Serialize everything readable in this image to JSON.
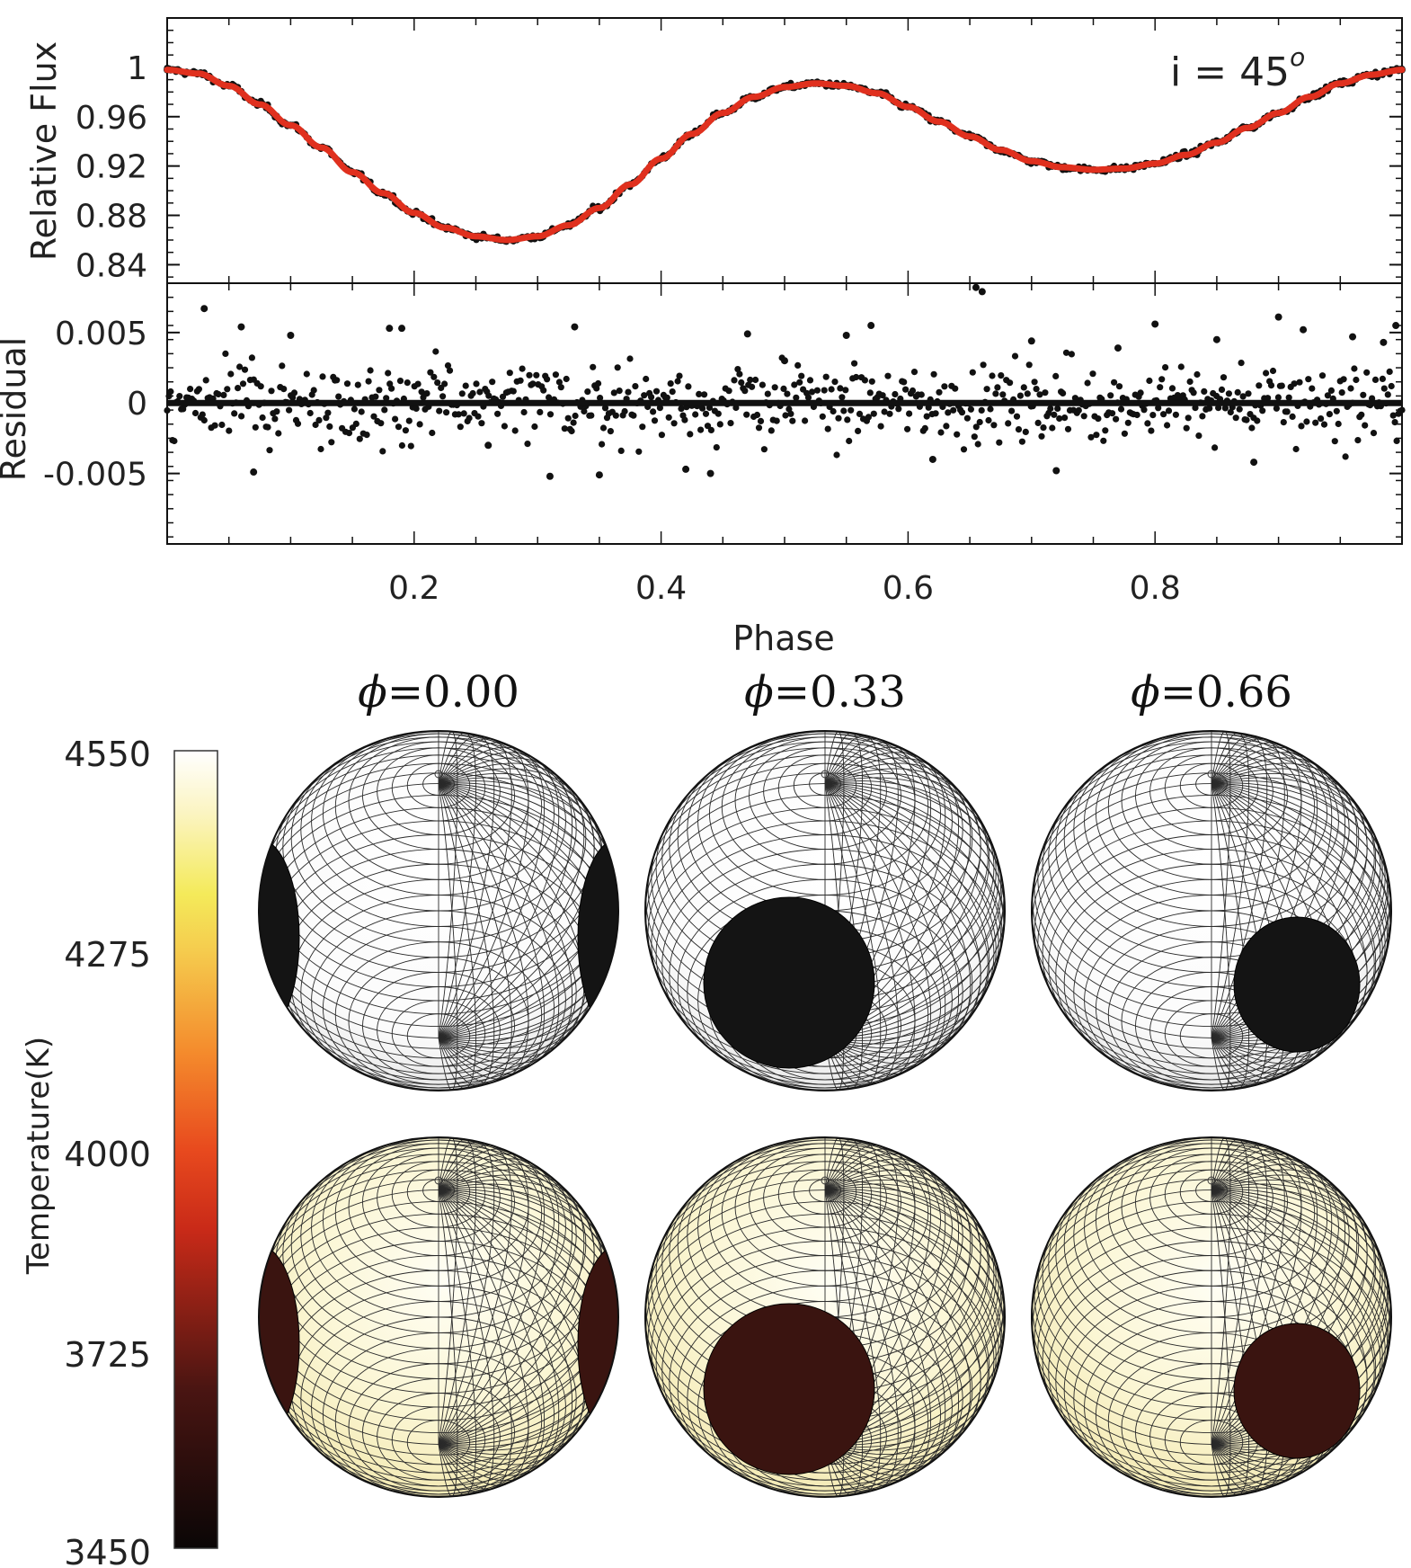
{
  "chart_data": [
    {
      "type": "scatter",
      "panel": "light-curve",
      "ylabel": "Relative Flux",
      "annotation": {
        "text": "i = 45",
        "superscript": "o"
      },
      "ylim": [
        0.825,
        1.04
      ],
      "xlim": [
        0.0,
        1.0
      ],
      "yticks": [
        0.84,
        0.88,
        0.92,
        0.96,
        1.0
      ],
      "ytick_labels": [
        "0.84",
        "0.88",
        "0.92",
        "0.96",
        "1"
      ],
      "grid": false,
      "series": [
        {
          "kind": "points",
          "color": "#111111",
          "x": [
            0.0,
            0.025,
            0.05,
            0.075,
            0.1,
            0.125,
            0.15,
            0.175,
            0.2,
            0.225,
            0.25,
            0.275,
            0.3,
            0.325,
            0.35,
            0.375,
            0.4,
            0.425,
            0.45,
            0.475,
            0.5,
            0.525,
            0.55,
            0.575,
            0.6,
            0.625,
            0.65,
            0.675,
            0.7,
            0.725,
            0.75,
            0.775,
            0.8,
            0.825,
            0.85,
            0.875,
            0.9,
            0.925,
            0.95,
            0.975,
            1.0
          ],
          "y": [
            0.998,
            0.995,
            0.985,
            0.97,
            0.953,
            0.935,
            0.915,
            0.898,
            0.882,
            0.87,
            0.863,
            0.86,
            0.863,
            0.872,
            0.886,
            0.905,
            0.926,
            0.946,
            0.963,
            0.976,
            0.984,
            0.987,
            0.985,
            0.979,
            0.968,
            0.956,
            0.944,
            0.933,
            0.924,
            0.919,
            0.917,
            0.918,
            0.922,
            0.929,
            0.939,
            0.951,
            0.963,
            0.976,
            0.987,
            0.994,
            0.998
          ]
        },
        {
          "kind": "line",
          "color": "#e0301e",
          "x": [
            0.0,
            0.025,
            0.05,
            0.075,
            0.1,
            0.125,
            0.15,
            0.175,
            0.2,
            0.225,
            0.25,
            0.275,
            0.3,
            0.325,
            0.35,
            0.375,
            0.4,
            0.425,
            0.45,
            0.475,
            0.5,
            0.525,
            0.55,
            0.575,
            0.6,
            0.625,
            0.65,
            0.675,
            0.7,
            0.725,
            0.75,
            0.775,
            0.8,
            0.825,
            0.85,
            0.875,
            0.9,
            0.925,
            0.95,
            0.975,
            1.0
          ],
          "y": [
            0.998,
            0.995,
            0.985,
            0.97,
            0.953,
            0.935,
            0.915,
            0.898,
            0.882,
            0.87,
            0.863,
            0.86,
            0.863,
            0.872,
            0.886,
            0.905,
            0.926,
            0.946,
            0.963,
            0.976,
            0.984,
            0.987,
            0.985,
            0.979,
            0.968,
            0.956,
            0.944,
            0.933,
            0.924,
            0.919,
            0.917,
            0.918,
            0.922,
            0.929,
            0.939,
            0.951,
            0.963,
            0.976,
            0.987,
            0.994,
            0.998
          ]
        }
      ]
    },
    {
      "type": "scatter",
      "panel": "residual",
      "ylabel": "Residual",
      "xlabel": "Phase",
      "xlim": [
        0.0,
        1.0
      ],
      "ylim": [
        -0.01,
        0.0085
      ],
      "xticks": [
        0.2,
        0.4,
        0.6,
        0.8
      ],
      "xtick_labels": [
        "0.2",
        "0.4",
        "0.6",
        "0.8"
      ],
      "yticks": [
        -0.005,
        0.0,
        0.005
      ],
      "ytick_labels": [
        "-0.005",
        "0",
        "0.005"
      ],
      "zero_line": 0,
      "grid": false,
      "x": [
        0.03,
        0.06,
        0.1,
        0.18,
        0.19,
        0.33,
        0.35,
        0.31,
        0.42,
        0.44,
        0.47,
        0.55,
        0.57,
        0.655,
        0.66,
        0.7,
        0.72,
        0.77,
        0.8,
        0.85,
        0.9,
        0.92,
        0.96,
        0.985,
        0.995,
        0.07,
        0.26,
        0.5,
        0.62,
        0.88
      ],
      "y": [
        0.0067,
        0.0054,
        0.0048,
        0.0053,
        0.0053,
        0.0054,
        -0.0051,
        -0.0052,
        -0.0047,
        -0.005,
        0.0049,
        0.0048,
        0.0055,
        0.0082,
        0.0079,
        0.0044,
        -0.0048,
        0.0039,
        0.0056,
        0.0045,
        0.0061,
        0.0052,
        0.0047,
        0.0043,
        0.0055,
        -0.0049,
        -0.003,
        0.003,
        -0.004,
        -0.0042
      ]
    },
    {
      "type": "heatmap",
      "panel": "surface-maps",
      "colorbar": {
        "label": "Temperature(K)",
        "min": 3450,
        "max": 4550,
        "ticks": [
          4550,
          4275,
          4000,
          3725,
          3450
        ],
        "tick_labels": [
          "4550",
          "4275",
          "4000",
          "3725",
          "3450"
        ]
      },
      "phase_labels": [
        "=0.00",
        "=0.33",
        "=0.66"
      ],
      "phi_symbol": "ϕ",
      "rows": [
        {
          "style": "grid-white",
          "spot_temperature_K": 3450
        },
        {
          "style": "temperature-colored",
          "photosphere_temperature_K": 4520,
          "spot_temperature_K": 3560
        }
      ]
    }
  ]
}
